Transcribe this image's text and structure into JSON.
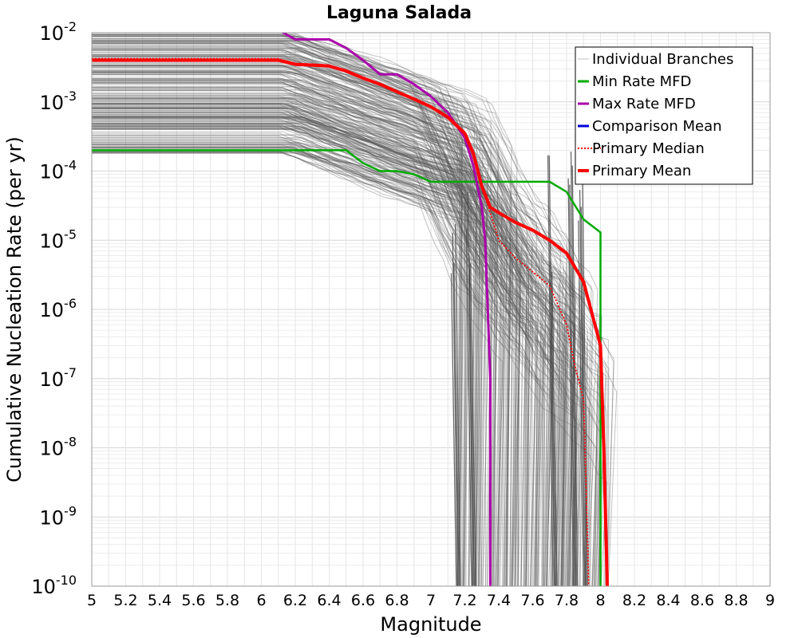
{
  "chart_data": {
    "type": "line",
    "title": "Laguna Salada",
    "xlabel": "Magnitude",
    "ylabel": "Cumulative Nucleation Rate (per yr)",
    "xlim": [
      5,
      9
    ],
    "ylim": [
      1e-10,
      0.01
    ],
    "y_scale": "log",
    "grid": true,
    "legend_position": "top-right",
    "x_ticks": [
      "5",
      "5.2",
      "5.4",
      "5.6",
      "5.8",
      "6",
      "6.2",
      "6.4",
      "6.6",
      "6.8",
      "7",
      "7.2",
      "7.4",
      "7.6",
      "7.8",
      "8",
      "8.2",
      "8.4",
      "8.6",
      "8.8",
      "9"
    ],
    "y_ticks": [
      {
        "base": "10",
        "exp": "-2",
        "value": 0.01
      },
      {
        "base": "10",
        "exp": "-3",
        "value": 0.001
      },
      {
        "base": "10",
        "exp": "-4",
        "value": 0.0001
      },
      {
        "base": "10",
        "exp": "-5",
        "value": 1e-05
      },
      {
        "base": "10",
        "exp": "-6",
        "value": 1e-06
      },
      {
        "base": "10",
        "exp": "-7",
        "value": 1e-07
      },
      {
        "base": "10",
        "exp": "-8",
        "value": 1e-08
      },
      {
        "base": "10",
        "exp": "-9",
        "value": 1e-09
      },
      {
        "base": "10",
        "exp": "-10",
        "value": 1e-10
      }
    ],
    "colors": {
      "branches": "#555555",
      "min": "#00aa00",
      "max": "#aa00aa",
      "comparison": "#0000dd",
      "median": "#ff0000",
      "mean": "#ff0000"
    },
    "legend": [
      {
        "name": "Individual Branches",
        "color": "#bbbbbb",
        "style": "thin"
      },
      {
        "name": "Min Rate MFD",
        "color": "#00aa00",
        "style": "solid"
      },
      {
        "name": "Max Rate MFD",
        "color": "#aa00aa",
        "style": "solid"
      },
      {
        "name": "Comparison Mean",
        "color": "#0000dd",
        "style": "solid"
      },
      {
        "name": " Primary Median",
        "color": "#ff0000",
        "style": "dotted"
      },
      {
        "name": "Primary Mean",
        "color": "#ff0000",
        "style": "thick"
      }
    ],
    "series": [
      {
        "name": "Min Rate MFD",
        "x": [
          5.0,
          6.0,
          6.5,
          6.6,
          6.7,
          6.8,
          6.9,
          7.0,
          7.3,
          7.7,
          7.8,
          7.9,
          8.0,
          8.0
        ],
        "y": [
          0.0002,
          0.0002,
          0.0002,
          0.00013,
          0.0001,
          0.0001,
          9e-05,
          7e-05,
          7e-05,
          7e-05,
          5e-05,
          2e-05,
          1.3e-05,
          1e-10
        ]
      },
      {
        "name": "Max Rate MFD",
        "x": [
          5.0,
          6.0,
          6.2,
          6.4,
          6.5,
          6.6,
          6.7,
          6.8,
          6.9,
          7.0,
          7.1,
          7.2,
          7.25,
          7.3,
          7.32,
          7.35,
          7.35
        ],
        "y": [
          0.02,
          0.015,
          0.008,
          0.008,
          0.006,
          0.004,
          0.0025,
          0.0025,
          0.0018,
          0.0012,
          0.0007,
          0.0003,
          0.00012,
          3e-05,
          1e-05,
          1e-07,
          1e-10
        ]
      },
      {
        "name": "Primary Median",
        "x": [
          5.0,
          6.1,
          6.2,
          6.4,
          6.5,
          6.6,
          6.7,
          6.8,
          6.9,
          7.0,
          7.1,
          7.2,
          7.25,
          7.3,
          7.35,
          7.4,
          7.5,
          7.6,
          7.7,
          7.8,
          7.85,
          7.9,
          7.92,
          7.93
        ],
        "y": [
          0.0042,
          0.0042,
          0.0036,
          0.0034,
          0.0028,
          0.0023,
          0.0018,
          0.0014,
          0.0011,
          0.00085,
          0.0006,
          0.00035,
          0.00018,
          6e-05,
          2.5e-05,
          1e-05,
          5.5e-06,
          3.5e-06,
          2.2e-06,
          6e-07,
          1.5e-07,
          5e-08,
          1e-09,
          1e-10
        ]
      },
      {
        "name": "Primary Mean",
        "x": [
          5.0,
          6.1,
          6.2,
          6.4,
          6.5,
          6.6,
          6.7,
          6.8,
          6.9,
          7.0,
          7.1,
          7.2,
          7.25,
          7.3,
          7.35,
          7.4,
          7.5,
          7.6,
          7.7,
          7.8,
          7.9,
          8.0,
          8.02,
          8.04
        ],
        "y": [
          0.004,
          0.004,
          0.0035,
          0.0033,
          0.0028,
          0.0022,
          0.0018,
          0.0014,
          0.0011,
          0.00085,
          0.0006,
          0.00035,
          0.00018,
          6e-05,
          3e-05,
          2.5e-05,
          1.8e-05,
          1.4e-05,
          1e-05,
          6.5e-06,
          2.5e-06,
          3e-07,
          1e-08,
          1e-10
        ]
      }
    ]
  }
}
